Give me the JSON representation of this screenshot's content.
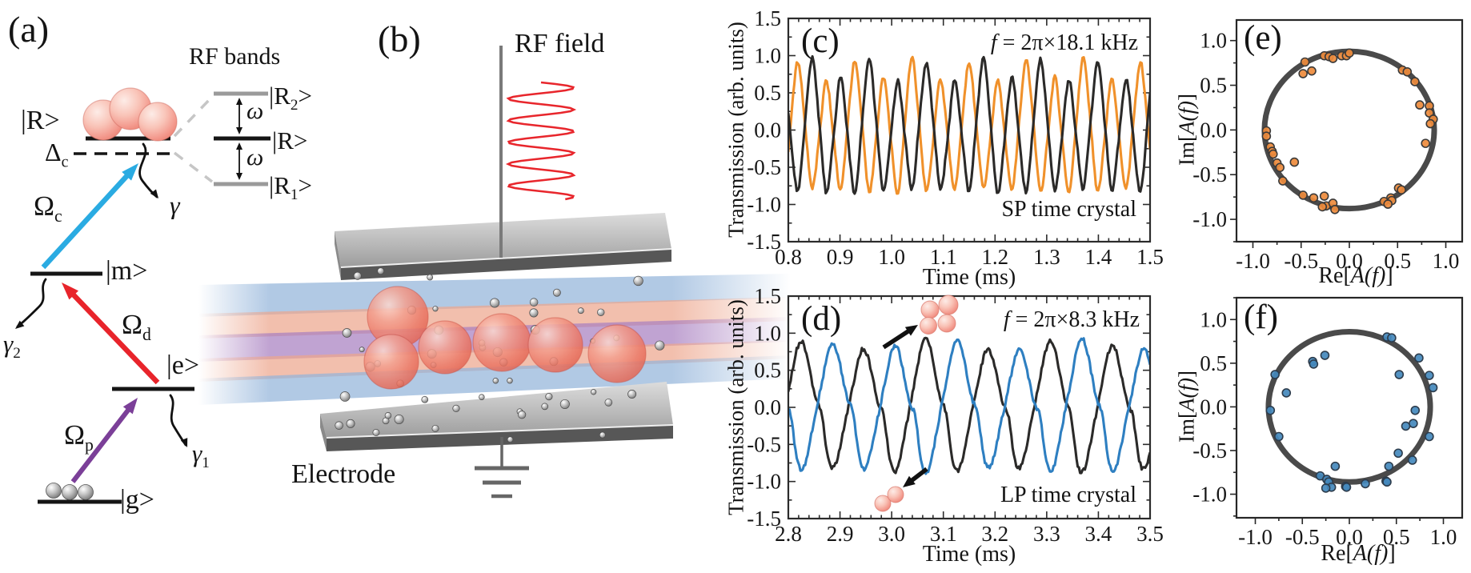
{
  "panel_a": {
    "label": "(a)",
    "rf_bands_title": "RF bands",
    "ket_R": "|R>",
    "ket_m": "|m>",
    "ket_e": "|e>",
    "ket_g": "|g>",
    "ket_R2_parts": [
      {
        "t": "|R"
      },
      {
        "t": "2",
        "s": 1
      },
      {
        "t": ">"
      }
    ],
    "ket_R1_parts": [
      {
        "t": "|R"
      },
      {
        "t": "1",
        "s": 1
      },
      {
        "t": ">"
      }
    ],
    "ket_R_band": "|R>",
    "delta_c_parts": [
      {
        "t": "Δ"
      },
      {
        "t": "c",
        "s": 1
      }
    ],
    "omega_c_parts": [
      {
        "t": "Ω"
      },
      {
        "t": "c",
        "s": 1
      }
    ],
    "omega_d_parts": [
      {
        "t": "Ω"
      },
      {
        "t": "d",
        "s": 1
      }
    ],
    "omega_p_parts": [
      {
        "t": "Ω"
      },
      {
        "t": "p",
        "s": 1
      }
    ],
    "gamma_parts": [
      {
        "t": "γ",
        "i": 1
      }
    ],
    "gamma1_parts": [
      {
        "t": "γ",
        "i": 1
      },
      {
        "t": "1",
        "s": 1
      }
    ],
    "gamma2_parts": [
      {
        "t": "γ",
        "i": 1
      },
      {
        "t": "2",
        "s": 1
      }
    ],
    "omega_small_parts": [
      {
        "t": "ω",
        "i": 1
      }
    ]
  },
  "panel_b": {
    "label": "(b)",
    "rf_field": "RF field",
    "electrode": "Electrode"
  },
  "colors": {
    "coupling_blue": "#2aabe2",
    "drive_red": "#e8242b",
    "pump_purple": "#7b3f98",
    "rf_wave_red": "#e8262c",
    "level_black": "#151515",
    "level_gray": "#9a9a9a",
    "beam_blue": "#93b4da",
    "beam_salmon": "#eda68d",
    "beam_purple": "#a87fc0"
  },
  "chart_data": [
    {
      "id": "c",
      "type": "line",
      "panel_label": "(c)",
      "annotation_parts": [
        {
          "t": "f",
          "i": 1
        },
        {
          "t": " = 2π×18.1 kHz"
        }
      ],
      "corner_label": "SP time crystal",
      "xlabel_parts": [
        {
          "t": "Time (ms)"
        }
      ],
      "ylabel_parts": [
        {
          "t": "Transmission (arb. units)"
        }
      ],
      "xlim": [
        0.8,
        1.5
      ],
      "ylim": [
        -1.5,
        1.5
      ],
      "xticks": {
        "values": [
          0.8,
          0.9,
          1.0,
          1.1,
          1.2,
          1.3,
          1.4,
          1.5
        ],
        "labels": [
          "0.8",
          "0.9",
          "1.0",
          "1.1",
          "1.2",
          "1.3",
          "1.4",
          "1.5"
        ],
        "minor_step": 0.02
      },
      "yticks": {
        "values": [
          -1.5,
          -1.0,
          -0.5,
          0.0,
          0.5,
          1.0,
          1.5
        ],
        "labels": [
          "-1.5",
          "-1.0",
          "-0.5",
          "0.0",
          "0.5",
          "1.0",
          "1.5"
        ],
        "minor_step": 0.25
      },
      "tick_style": "in-all",
      "frame_color": "#2b2b2b",
      "series": [
        {
          "name": "transmission-orange",
          "color": "#f0912b",
          "amp": 0.77,
          "freq_khz": 18.1,
          "peak_t_ms": 0.8184,
          "subharmonic": 0.13,
          "sharp": 0.045,
          "noise": 0.03,
          "seed": 7
        },
        {
          "name": "transmission-black",
          "color": "#2b2a29",
          "amp": 0.77,
          "freq_khz": 18.1,
          "peak_t_ms": 0.846,
          "subharmonic": 0.13,
          "sharp": 0.045,
          "noise": 0.03,
          "seed": 3
        }
      ]
    },
    {
      "id": "d",
      "type": "line",
      "panel_label": "(d)",
      "annotation_parts": [
        {
          "t": "f",
          "i": 1
        },
        {
          "t": " = 2π×8.3 kHz"
        }
      ],
      "corner_label": "LP time crystal",
      "xlabel_parts": [
        {
          "t": "Time (ms)"
        }
      ],
      "ylabel_parts": [
        {
          "t": "Transmission (arb. units)"
        }
      ],
      "xlim": [
        2.8,
        3.5
      ],
      "ylim": [
        -1.5,
        1.5
      ],
      "xticks": {
        "values": [
          2.8,
          2.9,
          3.0,
          3.1,
          3.2,
          3.3,
          3.4,
          3.5
        ],
        "labels": [
          "2.8",
          "2.9",
          "3.0",
          "3.1",
          "3.2",
          "3.3",
          "3.4",
          "3.5"
        ],
        "minor_step": 0.02
      },
      "yticks": {
        "values": [
          -1.5,
          -1.0,
          -0.5,
          0.0,
          0.5,
          1.0,
          1.5
        ],
        "labels": [
          "-1.5",
          "-1.0",
          "-0.5",
          "0.0",
          "0.5",
          "1.0",
          "1.5"
        ],
        "minor_step": 0.25
      },
      "tick_style": "in-all",
      "frame_color": "#2b2b2b",
      "series": [
        {
          "name": "transmission-black",
          "color": "#2b2a29",
          "amp": 0.8,
          "freq_khz": 8.3,
          "peak_t_ms": 2.825,
          "subharmonic": 0.04,
          "sharp": 0.05,
          "bump": {
            "amp": 0.22,
            "deg": 208,
            "k": 12
          },
          "noise": 0.03,
          "seed": 11
        },
        {
          "name": "transmission-blue",
          "color": "#2e7fc1",
          "amp": 0.8,
          "freq_khz": 8.3,
          "peak_t_ms": 2.886,
          "subharmonic": 0.04,
          "sharp": 0.05,
          "bump": {
            "amp": 0.22,
            "deg": 208,
            "k": 12
          },
          "noise": 0.03,
          "seed": 5
        }
      ]
    },
    {
      "id": "e",
      "type": "scatter",
      "panel_label": "(e)",
      "xlabel_parts": [
        {
          "t": "Re["
        },
        {
          "t": "A(f)",
          "i": 1
        },
        {
          "t": "]"
        }
      ],
      "ylabel_parts": [
        {
          "t": "Im["
        },
        {
          "t": "A(f)",
          "i": 1
        },
        {
          "t": "]"
        }
      ],
      "xlim": [
        -1.17,
        1.17
      ],
      "ylim": [
        -1.25,
        1.23
      ],
      "xticks": {
        "values": [
          -1.0,
          -0.5,
          0.0,
          0.5,
          1.0
        ],
        "labels": [
          "-1.0",
          "-0.5",
          "0.0",
          "0.5",
          "1.0"
        ],
        "minor_step": 0.25
      },
      "yticks": {
        "values": [
          -1.0,
          -0.5,
          0.0,
          0.5,
          1.0
        ],
        "labels": [
          "-1.0",
          "-0.5",
          "0.0",
          "0.5",
          "1.0"
        ],
        "minor_step": 0.25
      },
      "tick_style": "out-bl",
      "frame_color": "#262626",
      "circle": {
        "radius": 0.88,
        "color": "#4a4a4a",
        "stroke_px": 7
      },
      "marker": {
        "fill": "#ee8b3c",
        "edge": "#3a3a3a",
        "radius_px": 5
      },
      "points": [
        [
          -0.26,
          0.83
        ],
        [
          -0.21,
          0.82
        ],
        [
          -0.17,
          0.8
        ],
        [
          -0.08,
          0.83
        ],
        [
          -0.03,
          0.83
        ],
        [
          0.0,
          0.86
        ],
        [
          -0.46,
          0.76
        ],
        [
          -0.48,
          0.63
        ],
        [
          -0.39,
          0.66
        ],
        [
          0.55,
          0.67
        ],
        [
          0.6,
          0.65
        ],
        [
          0.68,
          0.54
        ],
        [
          0.73,
          0.28
        ],
        [
          0.83,
          0.27
        ],
        [
          0.83,
          0.19
        ],
        [
          0.87,
          0.12
        ],
        [
          0.84,
          0.07
        ],
        [
          0.79,
          -0.15
        ],
        [
          -0.86,
          -0.01
        ],
        [
          -0.86,
          -0.07
        ],
        [
          -0.82,
          -0.19
        ],
        [
          -0.8,
          -0.24
        ],
        [
          -0.79,
          -0.27
        ],
        [
          -0.75,
          -0.37
        ],
        [
          -0.72,
          -0.42
        ],
        [
          -0.57,
          -0.36
        ],
        [
          -0.69,
          -0.57
        ],
        [
          -0.48,
          -0.73
        ],
        [
          -0.37,
          -0.76
        ],
        [
          -0.26,
          -0.74
        ],
        [
          -0.24,
          -0.85
        ],
        [
          -0.28,
          -0.86
        ],
        [
          -0.17,
          -0.82
        ],
        [
          -0.15,
          -0.89
        ],
        [
          0.51,
          -0.65
        ],
        [
          0.54,
          -0.67
        ],
        [
          0.43,
          -0.76
        ],
        [
          0.44,
          -0.79
        ],
        [
          0.36,
          -0.8
        ],
        [
          0.4,
          -0.83
        ]
      ]
    },
    {
      "id": "f",
      "type": "scatter",
      "panel_label": "(f)",
      "xlabel_parts": [
        {
          "t": "Re["
        },
        {
          "t": "A(f)",
          "i": 1
        },
        {
          "t": "]"
        }
      ],
      "ylabel_parts": [
        {
          "t": "Im["
        },
        {
          "t": "A(f)",
          "i": 1
        },
        {
          "t": "]"
        }
      ],
      "xlim": [
        -1.2,
        1.2
      ],
      "ylim": [
        -1.27,
        1.25
      ],
      "xticks": {
        "values": [
          -1.0,
          -0.5,
          0.0,
          0.5,
          1.0
        ],
        "labels": [
          "-1.0",
          "-0.5",
          "0.0",
          "0.5",
          "1.0"
        ],
        "minor_step": 0.25
      },
      "yticks": {
        "values": [
          -1.0,
          -0.5,
          0.0,
          0.5,
          1.0
        ],
        "labels": [
          "-1.0",
          "-0.5",
          "0.0",
          "0.5",
          "1.0"
        ],
        "minor_step": 0.25
      },
      "tick_style": "out-bl",
      "frame_color": "#262626",
      "circle": {
        "radius": 0.86,
        "color": "#4a4a4a",
        "stroke_px": 7
      },
      "marker": {
        "fill": "#4489bd",
        "edge": "#2d3c4c",
        "radius_px": 5
      },
      "points": [
        [
          0.4,
          0.8
        ],
        [
          0.45,
          0.79
        ],
        [
          -0.39,
          0.52
        ],
        [
          -0.26,
          0.59
        ],
        [
          -0.38,
          0.49
        ],
        [
          -0.79,
          0.37
        ],
        [
          0.74,
          0.56
        ],
        [
          0.53,
          0.37
        ],
        [
          0.85,
          0.36
        ],
        [
          0.89,
          0.22
        ],
        [
          -0.67,
          0.16
        ],
        [
          -0.84,
          -0.04
        ],
        [
          0.7,
          -0.04
        ],
        [
          0.6,
          -0.22
        ],
        [
          0.68,
          -0.19
        ],
        [
          0.85,
          -0.34
        ],
        [
          -0.75,
          -0.34
        ],
        [
          0.52,
          -0.53
        ],
        [
          0.67,
          -0.61
        ],
        [
          0.42,
          -0.68
        ],
        [
          -0.15,
          -0.68
        ],
        [
          -0.31,
          -0.79
        ],
        [
          -0.24,
          -0.83
        ],
        [
          -0.22,
          -0.86
        ],
        [
          -0.19,
          -0.92
        ],
        [
          -0.25,
          -0.93
        ],
        [
          -0.04,
          -0.91
        ],
        [
          -0.03,
          -0.92
        ],
        [
          0.17,
          -0.88
        ],
        [
          0.39,
          -0.85
        ],
        [
          0.4,
          -0.86
        ]
      ]
    }
  ]
}
